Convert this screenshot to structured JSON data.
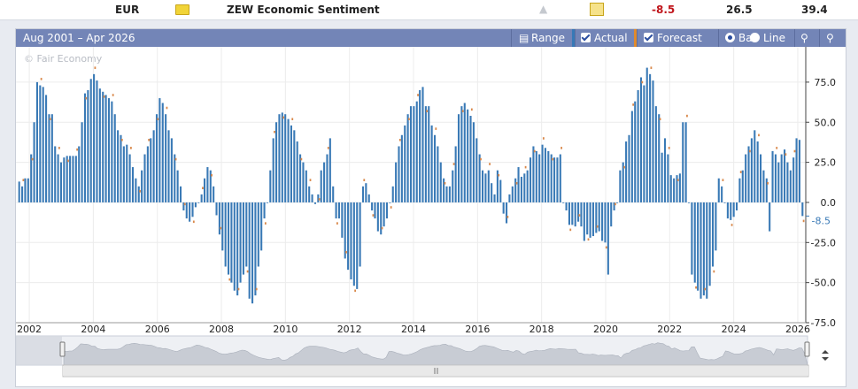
{
  "row": {
    "currency": "EUR",
    "event": "ZEW Economic Sentiment",
    "actual": "-8.5",
    "forecast": "26.5",
    "previous": "39.4"
  },
  "toolbar": {
    "range_text": "Aug 2001 – Apr 2026",
    "range_label": "Range",
    "actual_label": "Actual",
    "forecast_label": "Forecast",
    "bar_label": "Bar",
    "line_label": "Line"
  },
  "watermark": "© Fair Economy",
  "colors": {
    "actual": "#3a7ab6",
    "forecast": "#d9884a",
    "negative_value": "#c0151b",
    "toolbar": "#7385b7"
  },
  "chart_data": {
    "type": "bar",
    "x_start": "2001-08",
    "x_end": "2026-04",
    "ylim": [
      -75,
      97
    ],
    "y_ticks": [
      "75.0",
      "50.0",
      "25.0",
      "0.0",
      "-25.0",
      "-50.0",
      "-75.0"
    ],
    "x_ticks": [
      "2002",
      "2004",
      "2006",
      "2008",
      "2010",
      "2012",
      "2014",
      "2016",
      "2018",
      "2020",
      "2022",
      "2024",
      "2026"
    ],
    "latest_value": "-8.5",
    "series": [
      {
        "name": "Actual",
        "values": [
          13,
          10,
          15,
          15,
          30,
          50,
          75,
          73,
          72,
          67,
          55,
          55,
          35,
          30,
          25,
          28,
          29,
          29,
          29,
          29,
          35,
          50,
          68,
          70,
          77,
          80,
          76,
          71,
          69,
          67,
          65,
          63,
          55,
          45,
          42,
          35,
          36,
          30,
          22,
          15,
          10,
          20,
          30,
          35,
          40,
          45,
          55,
          65,
          62,
          55,
          45,
          40,
          30,
          20,
          10,
          -5,
          -10,
          -12,
          -9,
          -3,
          0,
          5,
          15,
          22,
          20,
          10,
          -8,
          -20,
          -30,
          -40,
          -45,
          -50,
          -55,
          -58,
          -50,
          -45,
          -40,
          -60,
          -63,
          -58,
          -40,
          -30,
          -10,
          0,
          20,
          40,
          50,
          55,
          56,
          55,
          52,
          48,
          45,
          38,
          30,
          25,
          20,
          10,
          5,
          -1,
          5,
          20,
          25,
          30,
          40,
          10,
          -10,
          -10,
          -22,
          -35,
          -42,
          -48,
          -52,
          -54,
          -40,
          10,
          12,
          5,
          -5,
          -10,
          -18,
          -20,
          -15,
          -10,
          0,
          10,
          25,
          35,
          42,
          48,
          55,
          60,
          60,
          63,
          70,
          72,
          60,
          60,
          48,
          42,
          35,
          25,
          15,
          10,
          10,
          20,
          35,
          55,
          60,
          62,
          58,
          54,
          50,
          40,
          30,
          20,
          18,
          20,
          12,
          5,
          20,
          14,
          -7,
          -13,
          5,
          10,
          15,
          22,
          16,
          18,
          20,
          28,
          35,
          32,
          30,
          36,
          34,
          32,
          30,
          28,
          28,
          30,
          0,
          -5,
          -14,
          -14,
          -15,
          -12,
          -15,
          -24,
          -20,
          -22,
          -21,
          -19,
          -18,
          -24,
          -25,
          -45,
          -15,
          -5,
          0,
          20,
          25,
          38,
          42,
          57,
          63,
          70,
          78,
          73,
          84,
          80,
          76,
          60,
          55,
          31,
          40,
          30,
          17,
          15,
          17,
          18,
          50,
          50,
          0,
          -45,
          -50,
          -55,
          -60,
          -58,
          -60,
          -52,
          -40,
          -30,
          15,
          10,
          0,
          -10,
          -11,
          -9,
          -5,
          15,
          20,
          30,
          35,
          40,
          45,
          38,
          30,
          20,
          15,
          -18,
          32,
          30,
          25,
          30,
          33,
          25,
          20,
          28,
          40,
          39,
          -8.5
        ]
      },
      {
        "name": "Forecast",
        "values": []
      }
    ]
  }
}
